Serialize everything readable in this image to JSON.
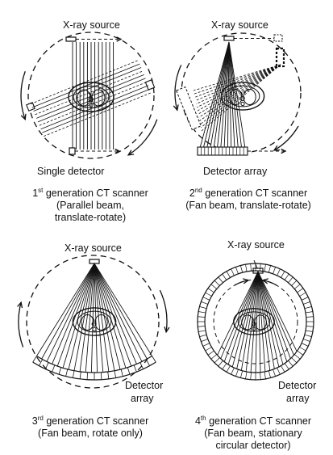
{
  "panels": [
    {
      "id": "gen1",
      "source_label": "X-ray source",
      "detector_label": "Single detector",
      "caption": {
        "ordinal": "1",
        "ordinal_suffix": "st",
        "title": "generation CT scanner",
        "line2": "(Parallel beam,",
        "line3": "translate-rotate)"
      }
    },
    {
      "id": "gen2",
      "source_label": "X-ray source",
      "detector_label": "Detector array",
      "caption": {
        "ordinal": "2",
        "ordinal_suffix": "nd",
        "title": "generation CT scanner",
        "line2": "(Fan beam, translate-rotate)"
      }
    },
    {
      "id": "gen3",
      "source_label": "X-ray source",
      "detector_label_1": "Detector",
      "detector_label_2": "array",
      "caption": {
        "ordinal": "3",
        "ordinal_suffix": "rd",
        "title": "generation CT scanner",
        "line2": "(Fan beam, rotate only)"
      }
    },
    {
      "id": "gen4",
      "source_label": "X-ray source",
      "detector_label_1": "Detector",
      "detector_label_2": "array",
      "caption": {
        "ordinal": "4",
        "ordinal_suffix": "th",
        "title": "generation CT scanner",
        "line2": "(Fan beam, stationary",
        "line3": "circular detector)"
      }
    }
  ]
}
